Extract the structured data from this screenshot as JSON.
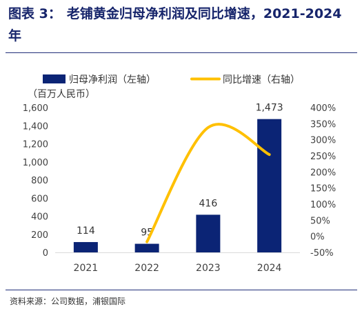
{
  "title": {
    "label": "图表 3：",
    "text": "老铺黄金归母净利润及同比增速，2021-2024 年"
  },
  "source": "资料来源：公司数据，浦银国际",
  "colors": {
    "title": "#16246b",
    "bar": "#0b2475",
    "line": "#ffc000",
    "rule": "#1f2d78"
  },
  "chart_data": {
    "type": "bar+line",
    "categories": [
      "2021",
      "2022",
      "2023",
      "2024"
    ],
    "series": [
      {
        "name": "归母净利润（左轴）",
        "type": "bar",
        "axis": "left",
        "values": [
          114,
          95,
          416,
          1473
        ],
        "labels": [
          "114",
          "95",
          "416",
          "1,473"
        ]
      },
      {
        "name": "同比增速（右轴）",
        "type": "line",
        "axis": "right",
        "smooth": true,
        "values": [
          null,
          -17,
          338,
          254
        ]
      }
    ],
    "ylabel_left": "（百万人民币）",
    "ylim_left": [
      0,
      1600
    ],
    "yticks_left": [
      "0",
      "200",
      "400",
      "600",
      "800",
      "1,000",
      "1,200",
      "1,400",
      "1,600"
    ],
    "ylim_right": [
      -50,
      400
    ],
    "yticks_right": [
      "-50%",
      "0%",
      "50%",
      "100%",
      "150%",
      "200%",
      "250%",
      "300%",
      "350%",
      "400%"
    ],
    "legend": "top",
    "grid": false
  }
}
